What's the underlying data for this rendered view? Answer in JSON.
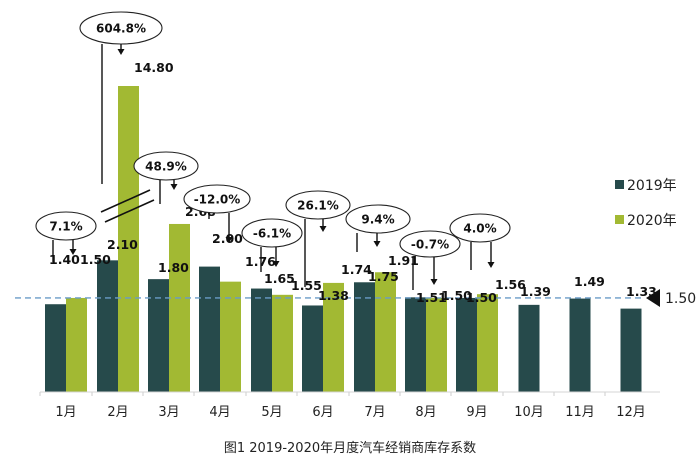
{
  "chart_data": {
    "type": "bar",
    "title": "图1  2019-2020年月度汽车经销商库存系数",
    "xlabel": "",
    "ylabel": "",
    "categories": [
      "1月",
      "2月",
      "3月",
      "4月",
      "5月",
      "6月",
      "7月",
      "8月",
      "9月",
      "10月",
      "11月",
      "12月"
    ],
    "series": [
      {
        "name": "2019年",
        "color": "#264a4b",
        "values": [
          1.4,
          2.1,
          1.8,
          2.0,
          1.65,
          1.38,
          1.75,
          1.51,
          1.5,
          1.39,
          1.49,
          1.33
        ]
      },
      {
        "name": "2020年",
        "color": "#a2b933",
        "values": [
          1.5,
          14.8,
          2.68,
          1.76,
          1.55,
          1.74,
          1.91,
          1.5,
          1.56,
          null,
          null,
          null
        ]
      }
    ],
    "yoy_change": [
      "7.1%",
      "604.8%",
      "48.9%",
      "-12.0%",
      "-6.1%",
      "26.1%",
      "9.4%",
      "-0.7%",
      "4.0%",
      null,
      null,
      null
    ],
    "reference_line": {
      "value": 1.5,
      "label": "1.50",
      "style": "dashed",
      "color": "#6a9cc8"
    },
    "axis_break": {
      "category": "2月",
      "series": "2020年"
    },
    "legend_position": "right",
    "grid": false
  },
  "legend": {
    "items": [
      {
        "label": "2019年",
        "color": "#264a4b"
      },
      {
        "label": "2020年",
        "color": "#a2b933"
      }
    ]
  },
  "reference": {
    "label": "1.50"
  },
  "caption": "图1  2019-2020年月度汽车经销商库存系数"
}
